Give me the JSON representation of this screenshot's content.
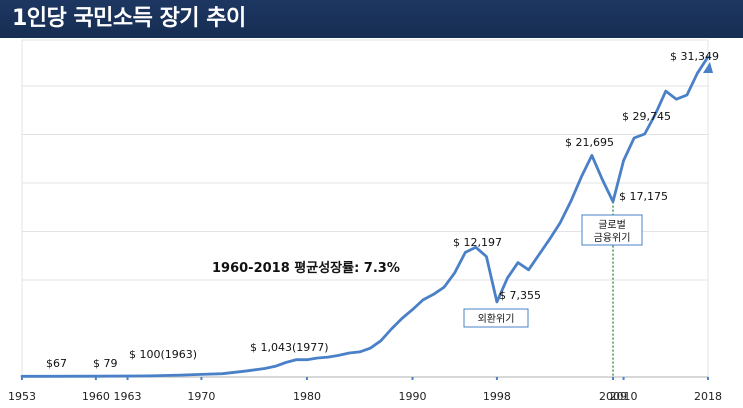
{
  "header": {
    "title": "1인당 국민소득 장기 추이"
  },
  "colors": {
    "header_bg": "#1d3762",
    "line": "#4a80c7",
    "grid": "#e3e3e3",
    "axis": "#c0c0c0",
    "callout_line": "#1e8a2f",
    "callout_border": "#4a80c7"
  },
  "chart_data": {
    "type": "line",
    "title": "",
    "xlabel": "",
    "ylabel": "",
    "grid": true,
    "xlim": [
      1953,
      2018
    ],
    "ylim": [
      0,
      33000
    ],
    "xticks": [
      "1953",
      "1960",
      "1963",
      "1970",
      "1980",
      "1990",
      "1998",
      "2009",
      "2010",
      "2018"
    ],
    "series": [
      {
        "x": [
          1953,
          1955,
          1960,
          1963,
          1965,
          1968,
          1970,
          1972,
          1974,
          1976,
          1977,
          1978,
          1979,
          1980,
          1981,
          1982,
          1983,
          1984,
          1985,
          1986,
          1987,
          1988,
          1989,
          1990,
          1991,
          1992,
          1993,
          1994,
          1995,
          1996,
          1997,
          1998,
          1999,
          2000,
          2001,
          2002,
          2003,
          2004,
          2005,
          2006,
          2007,
          2008,
          2009,
          2010,
          2011,
          2012,
          2013,
          2014,
          2015,
          2016,
          2017,
          2018
        ],
        "y": [
          67,
          70,
          79,
          100,
          105,
          190,
          255,
          325,
          560,
          830,
          1043,
          1420,
          1700,
          1690,
          1860,
          1950,
          2120,
          2350,
          2460,
          2820,
          3540,
          4700,
          5730,
          6600,
          7550,
          8100,
          8800,
          10200,
          12197,
          12700,
          11800,
          7355,
          9700,
          11200,
          10500,
          12000,
          13500,
          15100,
          17200,
          19600,
          21695,
          19300,
          17175,
          21200,
          23400,
          23800,
          25700,
          28000,
          27200,
          27600,
          29745,
          31349
        ]
      }
    ],
    "annotations": [
      {
        "text": "$67",
        "x": 1953,
        "y": 67
      },
      {
        "text": "$ 79",
        "x": 1960,
        "y": 79
      },
      {
        "text": "$ 100(1963)",
        "x": 1963,
        "y": 100
      },
      {
        "text": "$ 1,043(1977)",
        "x": 1977,
        "y": 1043
      },
      {
        "text": "$ 12,197",
        "x": 1995,
        "y": 12197
      },
      {
        "text": "$ 7,355",
        "x": 1998,
        "y": 7355
      },
      {
        "text": "$ 21,695",
        "x": 2007,
        "y": 21695
      },
      {
        "text": "$ 17,175",
        "x": 2009,
        "y": 17175
      },
      {
        "text": "$ 29,745",
        "x": 2017,
        "y": 29745
      },
      {
        "text": "$ 31,349",
        "x": 2018,
        "y": 31349
      }
    ],
    "growth_note": "1960-2018 평균성장률: 7.3%",
    "callouts": [
      {
        "lines": [
          "외환위기"
        ],
        "x": 1998
      },
      {
        "lines": [
          "글로벌",
          "금융위기"
        ],
        "x": 2009
      }
    ]
  }
}
